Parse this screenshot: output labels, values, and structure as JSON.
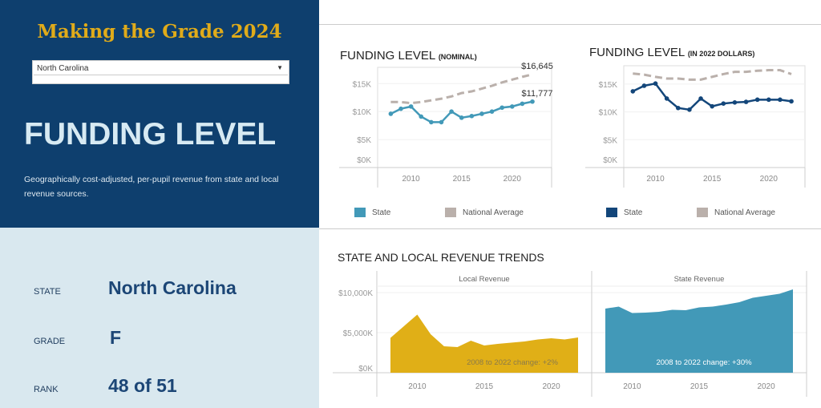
{
  "header": {
    "title": "Making the Grade 2024",
    "state_select": {
      "value": "North Carolina"
    }
  },
  "intro": {
    "heading": "FUNDING LEVEL",
    "description": "Geographically cost-adjusted, per-pupil revenue from state and local revenue sources."
  },
  "summary": {
    "state_label": "STATE",
    "state_value": "North Carolina",
    "grade_label": "GRADE",
    "grade_value": "F",
    "rank_label": "RANK",
    "rank_value": "48 of 51"
  },
  "colors": {
    "navy": "#0e3f6e",
    "teal": "#4299b8",
    "gold": "#e0af17",
    "gray": "#bab0ab",
    "state_real": "#13467a"
  },
  "chart_data": [
    {
      "type": "line",
      "title": "FUNDING LEVEL",
      "subtitle": "(NOMINAL)",
      "ylim": [
        0,
        17.9
      ],
      "yticks": [
        {
          "v": 0,
          "label": "$0K"
        },
        {
          "v": 5,
          "label": "$5K"
        },
        {
          "v": 10,
          "label": "$10K"
        },
        {
          "v": 15,
          "label": "$15K"
        }
      ],
      "xticks": [
        2010,
        2015,
        2020
      ],
      "x": [
        2008,
        2009,
        2010,
        2011,
        2012,
        2013,
        2014,
        2015,
        2016,
        2017,
        2018,
        2019,
        2020,
        2021,
        2022
      ],
      "series": [
        {
          "name": "National Average",
          "values": [
            11.7,
            11.7,
            11.5,
            11.7,
            12.0,
            12.3,
            12.7,
            13.3,
            13.6,
            14.1,
            14.6,
            15.2,
            15.7,
            16.2,
            16.645
          ],
          "end_label": "$16,645"
        },
        {
          "name": "State",
          "values": [
            9.6,
            10.5,
            10.9,
            9.1,
            8.1,
            8.1,
            10.0,
            8.9,
            9.2,
            9.6,
            10.0,
            10.7,
            10.9,
            11.4,
            11.777
          ],
          "end_label": "$11,777"
        }
      ],
      "legend": [
        "State",
        "National Average"
      ]
    },
    {
      "type": "line",
      "title": "FUNDING LEVEL",
      "subtitle": "(IN 2022 DOLLARS)",
      "ylim": [
        0,
        18.3
      ],
      "yticks": [
        {
          "v": 0,
          "label": "$0K"
        },
        {
          "v": 5,
          "label": "$5K"
        },
        {
          "v": 10,
          "label": "$10K"
        },
        {
          "v": 15,
          "label": "$15K"
        }
      ],
      "xticks": [
        2010,
        2015,
        2020
      ],
      "x": [
        2008,
        2009,
        2010,
        2011,
        2012,
        2013,
        2014,
        2015,
        2016,
        2017,
        2018,
        2019,
        2020,
        2021,
        2022
      ],
      "series": [
        {
          "name": "National Average",
          "values": [
            16.9,
            16.7,
            16.3,
            16.0,
            16.0,
            15.8,
            15.8,
            16.3,
            16.8,
            17.2,
            17.2,
            17.4,
            17.5,
            17.5,
            16.8
          ]
        },
        {
          "name": "State",
          "values": [
            13.7,
            14.7,
            15.1,
            12.4,
            10.7,
            10.4,
            12.4,
            11.0,
            11.5,
            11.7,
            11.8,
            12.2,
            12.2,
            12.2,
            11.9
          ]
        }
      ],
      "legend": [
        "State",
        "National Average"
      ]
    },
    {
      "type": "area",
      "title": "STATE AND LOCAL REVENUE TRENDS",
      "ylim": [
        0,
        10800
      ],
      "yticks": [
        {
          "v": 0,
          "label": "$0K"
        },
        {
          "v": 5000,
          "label": "$5,000K"
        },
        {
          "v": 10000,
          "label": "$10,000K"
        }
      ],
      "xticks": [
        2010,
        2015,
        2020
      ],
      "x": [
        2008,
        2009,
        2010,
        2011,
        2012,
        2013,
        2014,
        2015,
        2016,
        2017,
        2018,
        2019,
        2020,
        2021,
        2022
      ],
      "panels": [
        {
          "name": "Local Revenue",
          "values": [
            4350,
            5800,
            7250,
            4800,
            3300,
            3200,
            4000,
            3400,
            3600,
            3750,
            3900,
            4150,
            4300,
            4150,
            4400
          ],
          "annotation": "2008 to 2022 change:  +2%"
        },
        {
          "name": "State Revenue",
          "values": [
            8000,
            8250,
            7450,
            7500,
            7600,
            7850,
            7800,
            8150,
            8250,
            8500,
            8800,
            9350,
            9600,
            9850,
            10400
          ],
          "annotation": "2008 to  2022 change:  +30%"
        }
      ]
    }
  ]
}
